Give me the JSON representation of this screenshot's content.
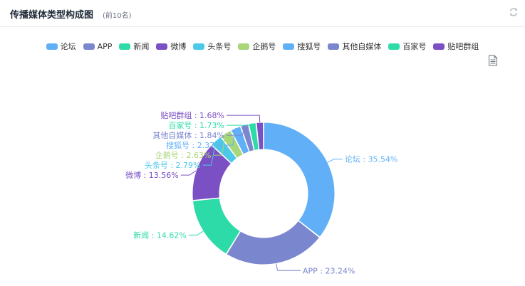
{
  "header": {
    "title": "传播媒体类型构成图",
    "subtitle": "(前10名)"
  },
  "icons": {
    "refresh": "refresh-icon",
    "document": "document-icon"
  },
  "chart_data": {
    "type": "pie",
    "style": "donut",
    "legend_position": "top",
    "slices": [
      {
        "name": "论坛",
        "value": 35.54,
        "label": "论坛 : 35.54%",
        "color": "#61b0f7"
      },
      {
        "name": "APP",
        "value": 23.24,
        "label": "APP : 23.24%",
        "color": "#7a87cf"
      },
      {
        "name": "新闻",
        "value": 14.62,
        "label": "新闻 : 14.62%",
        "color": "#2ddba8"
      },
      {
        "name": "微博",
        "value": 13.56,
        "label": "微博 : 13.56%",
        "color": "#7a50c4"
      },
      {
        "name": "头条号",
        "value": 2.79,
        "label": "头条号 : 2.79%",
        "color": "#4dc8e8"
      },
      {
        "name": "企鹅号",
        "value": 2.63,
        "label": "企鹅号 : 2.63%",
        "color": "#a8d67a"
      },
      {
        "name": "搜狐号",
        "value": 2.37,
        "label": "搜狐号 : 2.37%",
        "color": "#61b0f7"
      },
      {
        "name": "其他自媒体",
        "value": 1.84,
        "label": "其他自媒体 : 1.84%",
        "color": "#7a87cf"
      },
      {
        "name": "百家号",
        "value": 1.73,
        "label": "百家号 : 1.73%",
        "color": "#2ddba8"
      },
      {
        "name": "贴吧群组",
        "value": 1.68,
        "label": "贴吧群组 : 1.68%",
        "color": "#7a50c4"
      }
    ]
  }
}
